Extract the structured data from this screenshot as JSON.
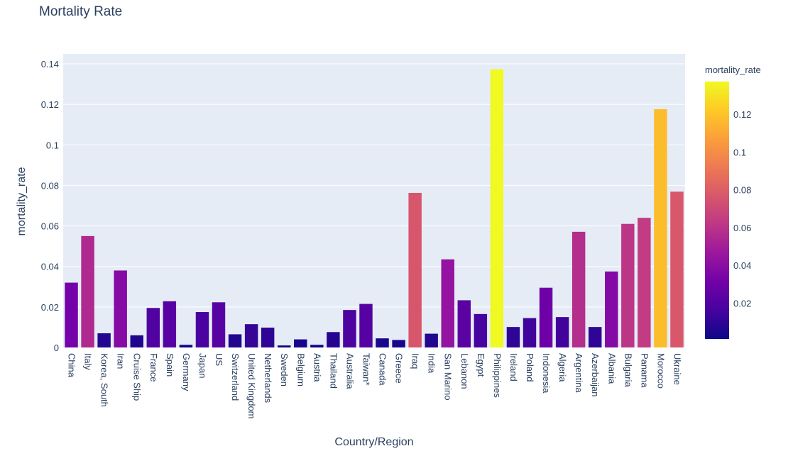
{
  "chart_data": {
    "type": "bar",
    "title": "Mortality Rate",
    "xlabel": "Country/Region",
    "ylabel": "mortality_rate",
    "categories": [
      "China",
      "Italy",
      "Korea, South",
      "Iran",
      "Cruise Ship",
      "France",
      "Spain",
      "Germany",
      "Japan",
      "US",
      "Switzerland",
      "United Kingdom",
      "Netherlands",
      "Sweden",
      "Belgium",
      "Austria",
      "Thailand",
      "Australia",
      "Taiwan*",
      "Canada",
      "Greece",
      "Iraq",
      "India",
      "San Marino",
      "Lebanon",
      "Egypt",
      "Philippines",
      "Ireland",
      "Poland",
      "Indonesia",
      "Algeria",
      "Argentina",
      "Azerbaijan",
      "Albania",
      "Bulgaria",
      "Panama",
      "Morocco",
      "Ukraine"
    ],
    "values": [
      0.032,
      0.055,
      0.007,
      0.038,
      0.006,
      0.0195,
      0.0228,
      0.0013,
      0.0175,
      0.0223,
      0.0065,
      0.0115,
      0.0098,
      0.001,
      0.004,
      0.0013,
      0.0076,
      0.0185,
      0.0215,
      0.0045,
      0.0037,
      0.0763,
      0.0068,
      0.0435,
      0.0233,
      0.0165,
      0.1373,
      0.0101,
      0.0145,
      0.0295,
      0.015,
      0.0571,
      0.0101,
      0.0375,
      0.061,
      0.064,
      0.1176,
      0.0769
    ],
    "ylim": [
      0,
      0.14
    ],
    "yticks": [
      "0",
      "0.02",
      "0.04",
      "0.06",
      "0.08",
      "0.1",
      "0.12",
      "0.14"
    ],
    "ytick_values": [
      0,
      0.02,
      0.04,
      0.06,
      0.08,
      0.1,
      0.12,
      0.14
    ],
    "grid": true,
    "colorbar": {
      "title": "mortality_rate",
      "colorscale": "plasma",
      "range": [
        0.001,
        0.1373
      ],
      "ticks": [
        "0.02",
        "0.04",
        "0.06",
        "0.08",
        "0.1",
        "0.12"
      ],
      "tick_values": [
        0.02,
        0.04,
        0.06,
        0.08,
        0.1,
        0.12
      ],
      "colors": [
        "#0d0887",
        "#46039f",
        "#7201a8",
        "#9c179e",
        "#bd3786",
        "#d8576b",
        "#ed7953",
        "#fb9f3a",
        "#fdca26",
        "#f0f921"
      ]
    },
    "plot_bg": "#e5ecf6"
  }
}
